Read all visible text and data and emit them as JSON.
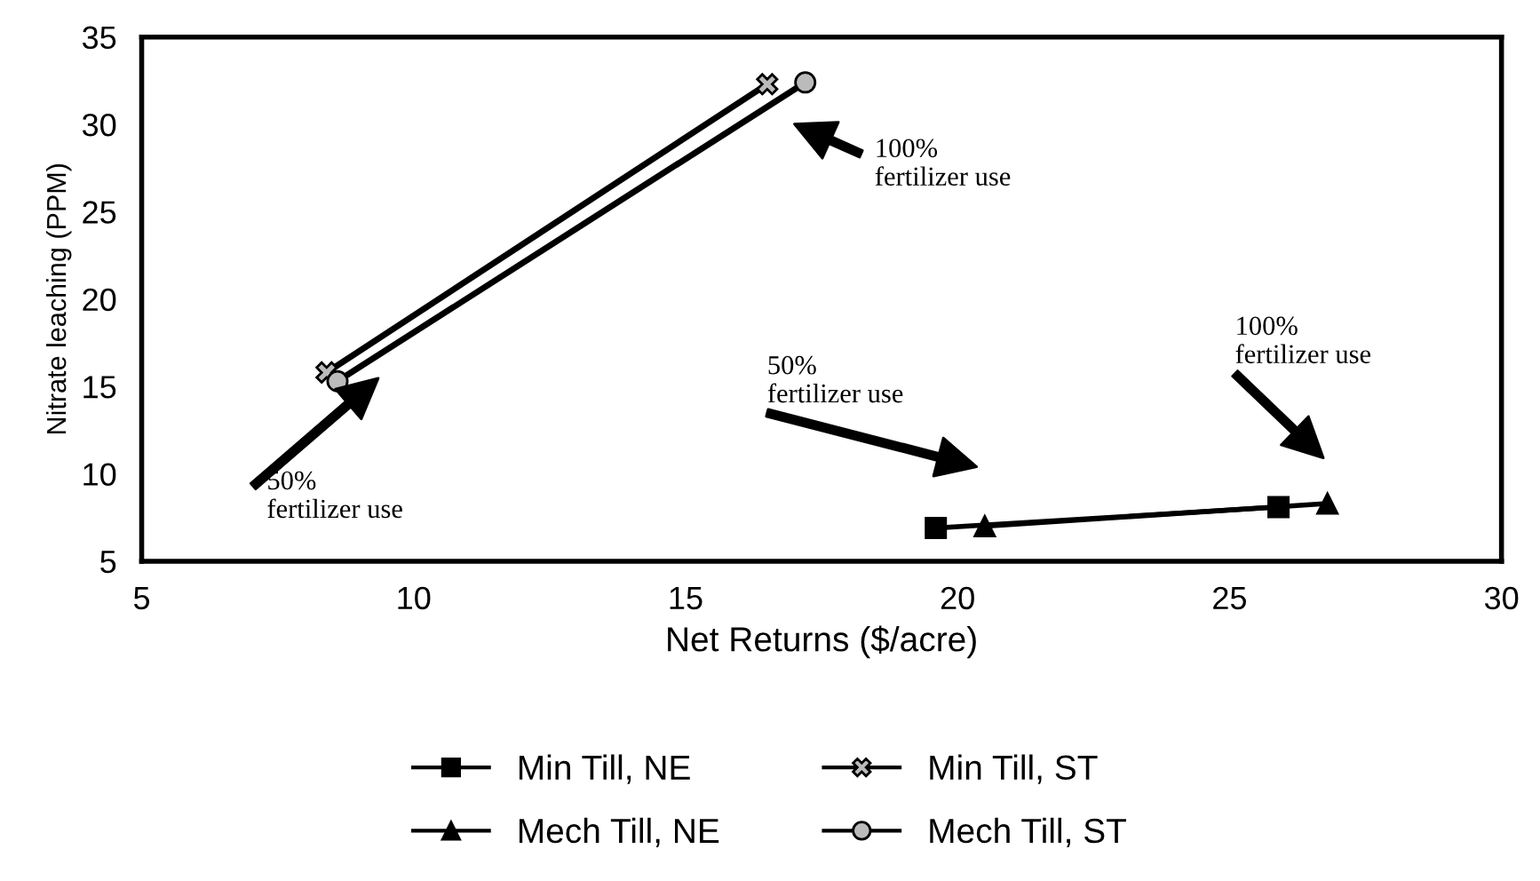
{
  "chart_data": {
    "type": "line",
    "xlabel": "Net Returns ($/acre)",
    "ylabel": "Nitrate leaching (PPM)",
    "xlim": [
      5,
      30
    ],
    "xticks": [
      5,
      10,
      15,
      20,
      25,
      30
    ],
    "ylim": [
      5,
      35
    ],
    "yticks": [
      5,
      10,
      15,
      20,
      25,
      30,
      35
    ],
    "grid": false,
    "legend": "bottom",
    "series": [
      {
        "name": "Min Till, NE",
        "color": "#000000",
        "marker": "square",
        "x": [
          19.6,
          25.9
        ],
        "values": [
          6.9,
          8.1
        ]
      },
      {
        "name": "Mech Till, NE",
        "color": "#000000",
        "marker": "triangle",
        "x": [
          20.5,
          26.8
        ],
        "values": [
          7.0,
          8.3
        ]
      },
      {
        "name": "Min Till, ST",
        "color": "#000000",
        "marker": "cross",
        "x": [
          8.4,
          16.5
        ],
        "values": [
          15.8,
          32.3
        ]
      },
      {
        "name": "Mech Till, ST",
        "color": "#000000",
        "marker": "circle",
        "x": [
          8.6,
          17.2
        ],
        "values": [
          15.3,
          32.4
        ]
      }
    ],
    "annotations": [
      "100%\nfertilizer use",
      "50%\nfertilizer use",
      "50%\nfertilizer use",
      "100%\nfertilizer use"
    ]
  }
}
